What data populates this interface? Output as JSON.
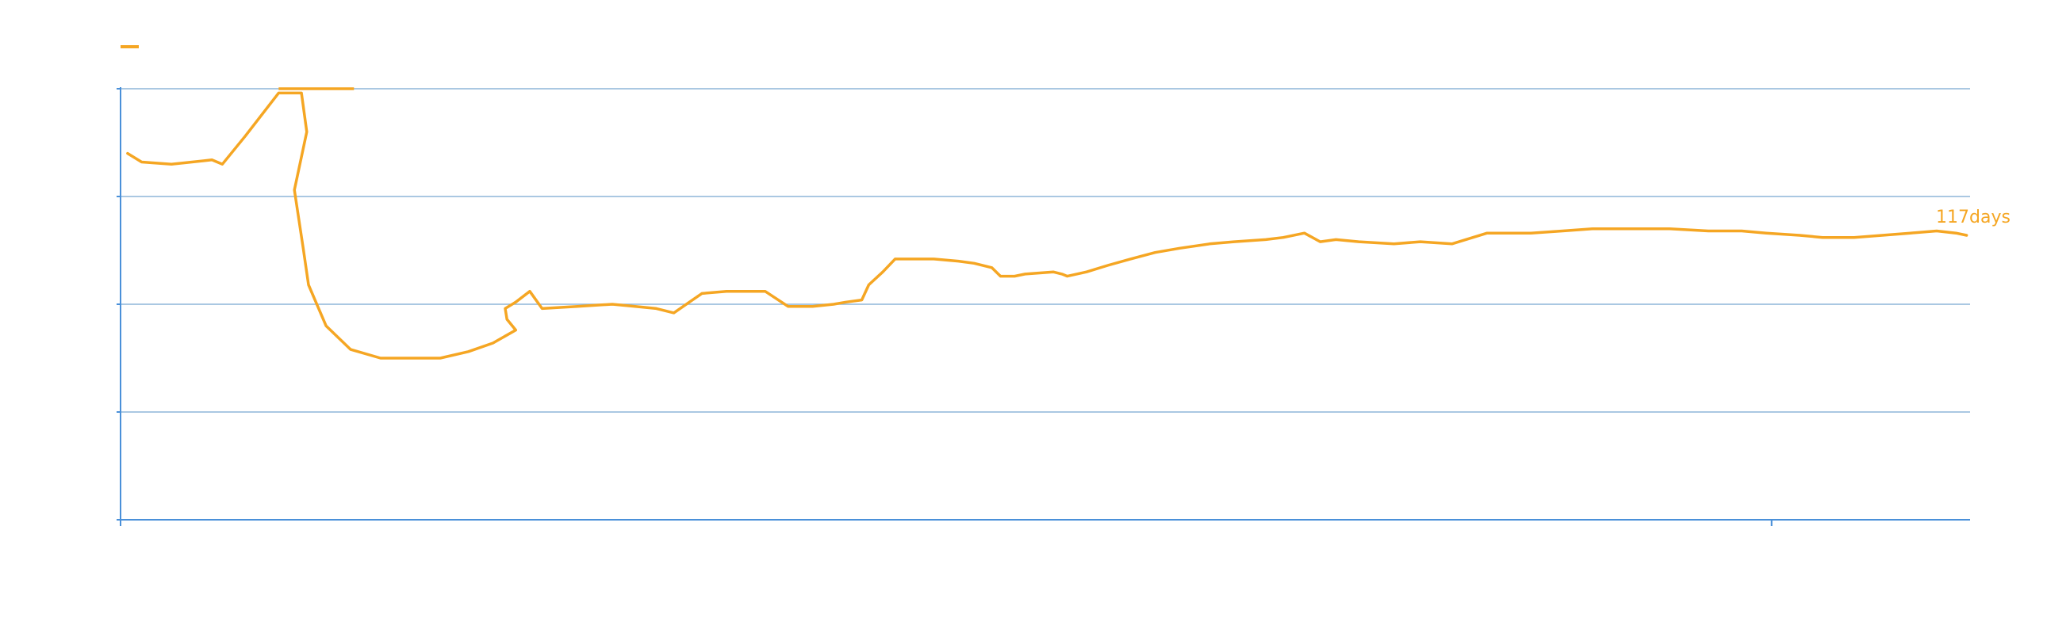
{
  "chart_data": {
    "type": "line",
    "title": "",
    "xlabel": "",
    "ylabel": "",
    "grid": true,
    "legend": "top-left",
    "colors": {
      "series": "#F5A623",
      "axis": "#4A90D9",
      "grid": "#8DB6D9"
    },
    "end_label": "117days",
    "series": [
      {
        "color": "#F5A623",
        "points": [
          [
            4,
            1.7
          ],
          [
            12,
            1.66
          ],
          [
            29,
            1.65
          ],
          [
            52,
            1.67
          ],
          [
            58,
            1.65
          ],
          [
            71,
            1.78
          ],
          [
            90,
            1.98
          ],
          [
            103,
            1.98
          ],
          [
            106,
            1.8
          ],
          [
            99,
            1.53
          ],
          [
            104,
            1.26
          ],
          [
            107,
            1.09
          ],
          [
            117,
            0.9
          ],
          [
            131,
            0.79
          ],
          [
            148,
            0.75
          ],
          [
            182,
            0.75
          ],
          [
            198,
            0.78
          ],
          [
            212,
            0.82
          ],
          [
            225,
            0.88
          ],
          [
            220,
            0.93
          ],
          [
            219,
            0.98
          ],
          [
            225,
            1.01
          ],
          [
            233,
            1.06
          ],
          [
            240,
            0.98
          ],
          [
            260,
            0.99
          ],
          [
            280,
            1.0
          ],
          [
            293,
            0.99
          ],
          [
            305,
            0.98
          ],
          [
            315,
            0.96
          ],
          [
            331,
            1.05
          ],
          [
            345,
            1.06
          ],
          [
            367,
            1.06
          ],
          [
            380,
            0.99
          ],
          [
            394,
            0.99
          ],
          [
            406,
            1.0
          ],
          [
            413,
            1.01
          ],
          [
            422,
            1.02
          ],
          [
            426,
            1.09
          ],
          [
            434,
            1.15
          ],
          [
            441,
            1.21
          ],
          [
            463,
            1.21
          ],
          [
            477,
            1.2
          ],
          [
            486,
            1.19
          ],
          [
            496,
            1.17
          ],
          [
            501,
            1.13
          ],
          [
            509,
            1.13
          ],
          [
            515,
            1.14
          ],
          [
            531,
            1.15
          ],
          [
            536,
            1.14
          ],
          [
            539,
            1.13
          ],
          [
            550,
            1.15
          ],
          [
            562,
            1.18
          ],
          [
            575,
            1.21
          ],
          [
            589,
            1.24
          ],
          [
            603,
            1.26
          ],
          [
            620,
            1.28
          ],
          [
            634,
            1.29
          ],
          [
            652,
            1.3
          ],
          [
            662,
            1.31
          ],
          [
            674,
            1.33
          ],
          [
            683,
            1.29
          ],
          [
            692,
            1.3
          ],
          [
            705,
            1.29
          ],
          [
            725,
            1.28
          ],
          [
            740,
            1.29
          ],
          [
            758,
            1.28
          ],
          [
            778,
            1.33
          ],
          [
            803,
            1.33
          ],
          [
            821,
            1.34
          ],
          [
            838,
            1.35
          ],
          [
            860,
            1.35
          ],
          [
            882,
            1.35
          ],
          [
            904,
            1.34
          ],
          [
            923,
            1.34
          ],
          [
            937,
            1.33
          ],
          [
            956,
            1.32
          ],
          [
            969,
            1.31
          ],
          [
            987,
            1.31
          ],
          [
            1003,
            1.32
          ],
          [
            1019,
            1.33
          ],
          [
            1034,
            1.34
          ],
          [
            1045,
            1.33
          ],
          [
            1051,
            1.32
          ]
        ]
      }
    ],
    "xlim": [
      0,
      1053
    ],
    "ylim": [
      0,
      2
    ],
    "yticks": [
      0,
      0.5,
      1,
      1.5,
      2
    ],
    "xticks": [
      0,
      940
    ]
  }
}
